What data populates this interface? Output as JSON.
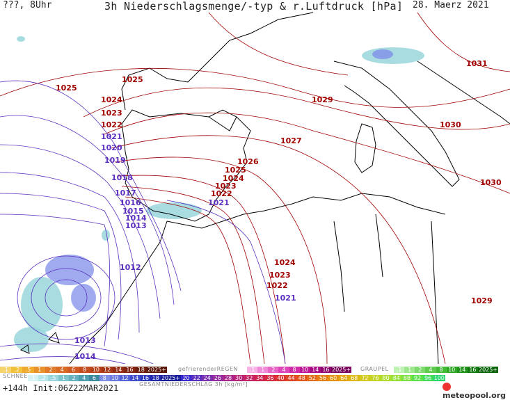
{
  "header": {
    "left": "???, 8Uhr",
    "title": "3h Niederschlagsmenge/-typ & r.Luftdruck [hPa]",
    "date": "28. Maerz 2021"
  },
  "map": {
    "isobar_labels": [
      {
        "text": "1025",
        "color": "#a00000"
      },
      {
        "text": "1025",
        "color": "#a00000"
      },
      {
        "text": "1024",
        "color": "#a00000"
      },
      {
        "text": "1023",
        "color": "#a00000"
      },
      {
        "text": "1022",
        "color": "#a00000"
      },
      {
        "text": "1021",
        "color": "#5a2fbf"
      },
      {
        "text": "1020",
        "color": "#5a2fbf"
      },
      {
        "text": "1019",
        "color": "#5a2fbf"
      },
      {
        "text": "1018",
        "color": "#5a2fbf"
      },
      {
        "text": "1017",
        "color": "#5a2fbf"
      },
      {
        "text": "1016",
        "color": "#5a2fbf"
      },
      {
        "text": "1015",
        "color": "#5a2fbf"
      },
      {
        "text": "1014",
        "color": "#5a2fbf"
      },
      {
        "text": "1013",
        "color": "#5a2fbf"
      },
      {
        "text": "1012",
        "color": "#5a2fbf"
      },
      {
        "text": "1013",
        "color": "#5a2fbf"
      },
      {
        "text": "1014",
        "color": "#5a2fbf"
      },
      {
        "text": "1026",
        "color": "#a00000"
      },
      {
        "text": "1025",
        "color": "#a00000"
      },
      {
        "text": "1024",
        "color": "#a00000"
      },
      {
        "text": "1023",
        "color": "#a00000"
      },
      {
        "text": "1022",
        "color": "#a00000"
      },
      {
        "text": "1021",
        "color": "#5a2fbf"
      },
      {
        "text": "1027",
        "color": "#a00000"
      },
      {
        "text": "1029",
        "color": "#a00000"
      },
      {
        "text": "1031",
        "color": "#a00000"
      },
      {
        "text": "1030",
        "color": "#a00000"
      },
      {
        "text": "1030",
        "color": "#a00000"
      },
      {
        "text": "1024",
        "color": "#a00000"
      },
      {
        "text": "1023",
        "color": "#a00000"
      },
      {
        "text": "1022",
        "color": "#a00000"
      },
      {
        "text": "1021",
        "color": "#5a2fbf"
      },
      {
        "text": "1029",
        "color": "#a00000"
      }
    ]
  },
  "legend": {
    "rain_cells": [
      ".1",
      ".2",
      ".5",
      "1",
      "2",
      "4",
      "6",
      "8",
      "10",
      "12",
      "14",
      "16",
      "18",
      "2025+"
    ],
    "freezing_label": "gefrierenderREGEN",
    "freezing_cells": [
      ".1",
      "1",
      "2",
      "4",
      "8",
      "10",
      "14",
      "16",
      "2025+"
    ],
    "graupel_label": "GRAUPEL",
    "graupel_cells": [
      ".1",
      "1",
      "2",
      "4",
      "8",
      "10",
      "14",
      "16",
      "2025+"
    ],
    "snow_label": "SCHNEE",
    "snow_cells": [
      ".1",
      ".2",
      ".5",
      "1",
      "2",
      "4",
      "6",
      "8",
      "10",
      "12",
      "14",
      "16",
      "18",
      "2025+"
    ],
    "total_cells": [
      "20",
      "22",
      "24",
      "26",
      "28",
      "30",
      "32",
      "34",
      "36",
      "40",
      "44",
      "48",
      "52",
      "56",
      "60",
      "64",
      "68",
      "72",
      "76",
      "80",
      "84",
      "88",
      "92",
      "96",
      "100"
    ],
    "total_label": "GESAMTNIEDERSCHLAG 3h [kg/m²]",
    "footer_left": "+144h Init:06Z22MAR2021",
    "brand": "meteopool.org"
  },
  "colors": {
    "high": "#a00000",
    "low": "#5a2fbf",
    "coast": "#000000",
    "snow": "#9ad6dc",
    "rain": "#7f8fe8"
  }
}
